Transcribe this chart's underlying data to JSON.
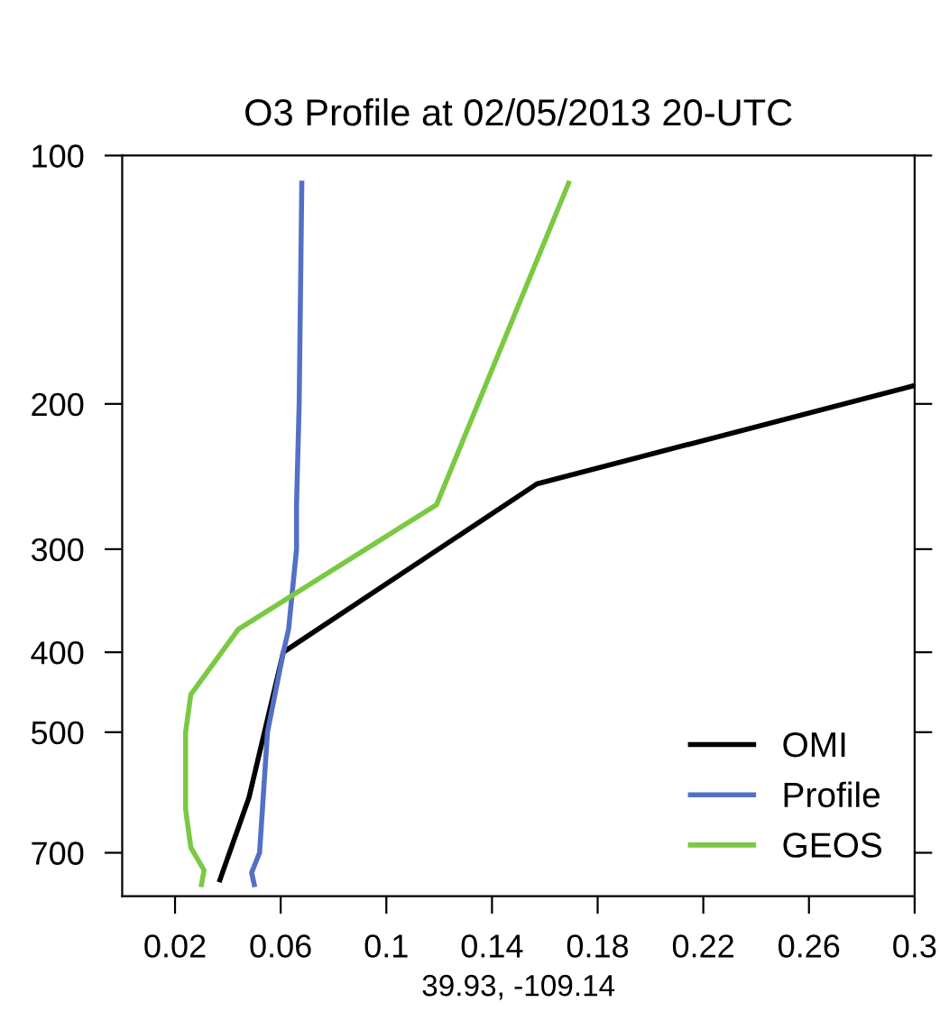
{
  "chart_data": {
    "type": "line",
    "title": "O3 Profile at 02/05/2013 20-UTC",
    "xlabel": "39.93, -109.14",
    "xlim": [
      0,
      0.3
    ],
    "xticks": [
      0.02,
      0.06,
      0.1,
      0.14,
      0.18,
      0.22,
      0.26,
      0.3
    ],
    "ylim": [
      790,
      100
    ],
    "yticks": [
      100,
      200,
      300,
      400,
      500,
      700
    ],
    "legend": "bottom right",
    "grid": false,
    "log": "y",
    "series": [
      {
        "name": "OMI",
        "color": "#000000",
        "x": [
          0.3,
          0.157,
          0.061,
          0.048,
          0.037
        ],
        "values": [
          190,
          250,
          400,
          600,
          755
        ]
      },
      {
        "name": "Profile",
        "color": "#5470c6",
        "x": [
          0.068,
          0.067,
          0.066,
          0.066,
          0.063,
          0.061,
          0.055,
          0.052,
          0.049,
          0.05
        ],
        "values": [
          108,
          200,
          265,
          300,
          375,
          400,
          500,
          700,
          740,
          765
        ]
      },
      {
        "name": "GEOS",
        "color": "#7ac943",
        "x": [
          0.169,
          0.119,
          0.044,
          0.026,
          0.024,
          0.024,
          0.026,
          0.031,
          0.03
        ],
        "values": [
          108,
          265,
          375,
          450,
          500,
          620,
          690,
          735,
          765
        ]
      }
    ]
  }
}
